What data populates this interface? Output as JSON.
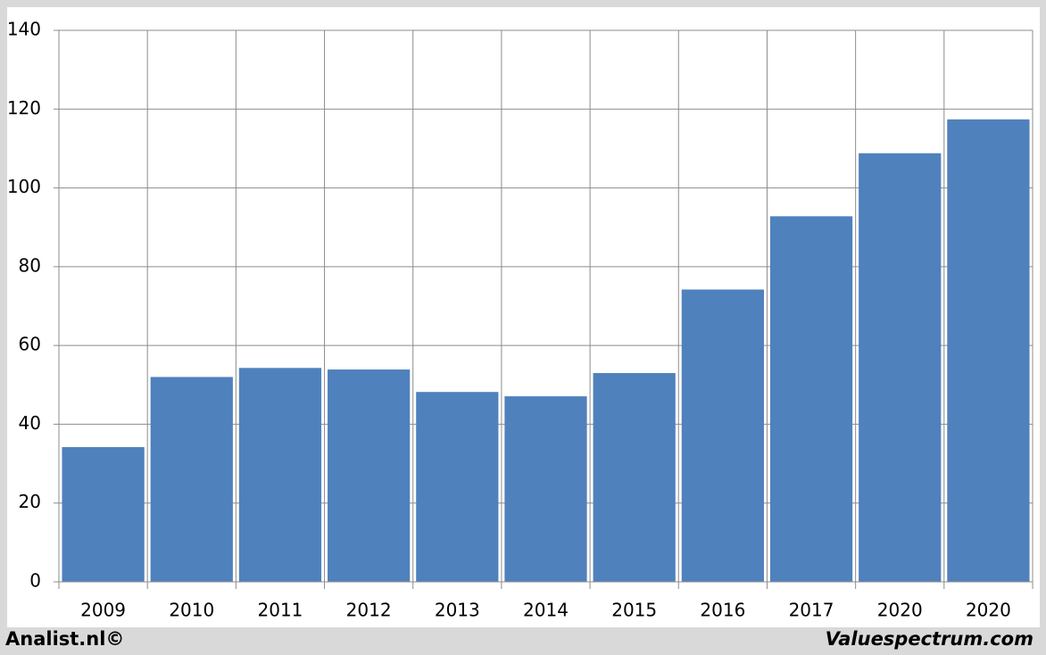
{
  "chart_data": {
    "type": "bar",
    "categories": [
      "2009",
      "2010",
      "2011",
      "2012",
      "2013",
      "2014",
      "2015",
      "2016",
      "2017",
      "2020",
      "2020"
    ],
    "values": [
      34.2,
      52,
      54.3,
      53.9,
      48.2,
      47.1,
      53,
      74.2,
      92.8,
      108.8,
      117.4
    ],
    "color": "#4f81bd",
    "ylim": [
      0,
      140
    ],
    "yticks": [
      0,
      20,
      40,
      60,
      80,
      100,
      120,
      140
    ],
    "grid": true,
    "credits": [
      "Analist.nl©",
      "Valuespectrum.com"
    ]
  }
}
